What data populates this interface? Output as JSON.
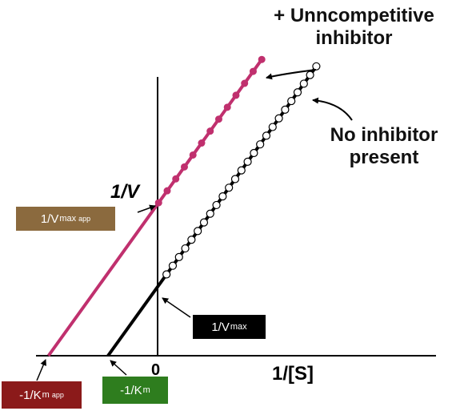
{
  "labels": {
    "uncomp_line1": "+ Unncompetitive",
    "uncomp_line2": "inhibitor",
    "noinh_line1": "No inhibitor",
    "noinh_line2": "present",
    "y_axis": "1/V",
    "x_axis": "1/[S]",
    "origin": "0"
  },
  "boxes": {
    "vmax_app": {
      "main": "1/V",
      "sub": "max",
      "tag": "app",
      "color": "#8b6a3e"
    },
    "vmax": {
      "main": "1/V",
      "sub": "max",
      "color": "#000000"
    },
    "km_app": {
      "main": "-1/K",
      "sub": "m",
      "tag": "app",
      "color": "#8b1a1a"
    },
    "km": {
      "main": "-1/K",
      "sub": "m",
      "color": "#2e7d1e"
    }
  },
  "colors": {
    "uncompetitive": "#c0306e",
    "no_inhibitor": "#000000",
    "axes": "#000000"
  },
  "chart_data": {
    "type": "line",
    "title": "",
    "xlabel": "1/[S]",
    "ylabel": "1/V",
    "series": [
      {
        "name": "+ Unncompetitive inhibitor",
        "slope": 1.0,
        "x_intercept": -2.2,
        "y_intercept": 2.2,
        "x_range": [
          -2.2,
          2.1
        ]
      },
      {
        "name": "No inhibitor present",
        "slope": 1.0,
        "x_intercept": -1.0,
        "y_intercept": 1.0,
        "x_range": [
          -1.0,
          3.2
        ]
      }
    ]
  }
}
